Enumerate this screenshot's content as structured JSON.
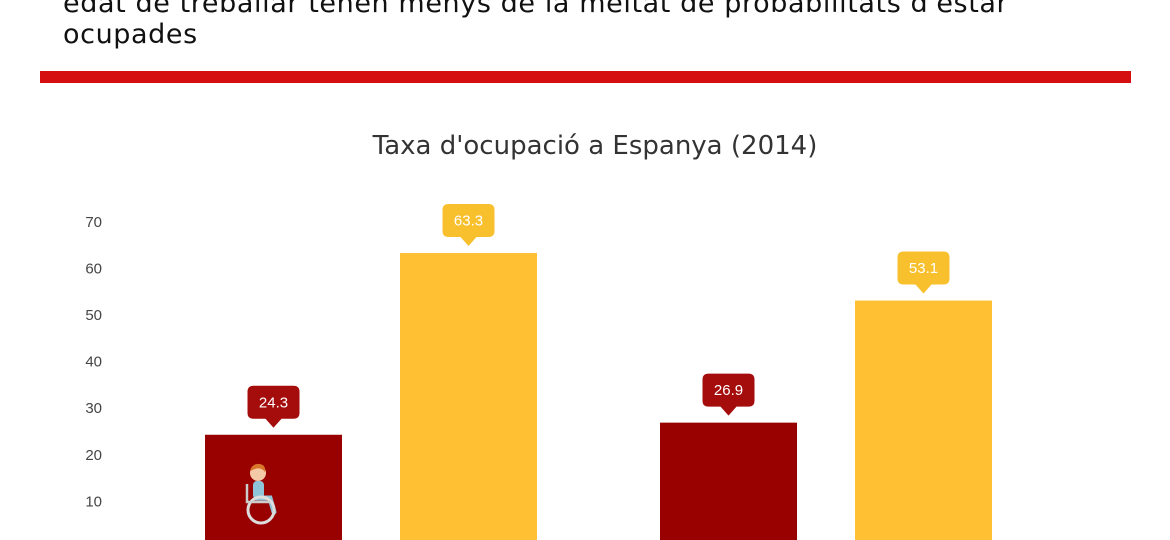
{
  "headline": {
    "line1": "edat de treballar tenen menys de la meitat de probabilitats d'estar",
    "line2": "ocupades"
  },
  "colors": {
    "rule": "#d50f0f",
    "series_a": "#990000",
    "series_b": "#ffc133",
    "label_a_bg": "#a50d0d",
    "label_b_bg": "#f9c02e"
  },
  "icon": "wheelchair-user-icon",
  "chart_data": {
    "type": "bar",
    "title": "Taxa d'ocupació a Espanya (2014)",
    "xlabel": "",
    "ylabel": "",
    "ylim": [
      0,
      70
    ],
    "yticks": [
      10,
      20,
      30,
      40,
      50,
      60,
      70
    ],
    "grid": false,
    "bars": [
      {
        "group": 1,
        "value": 24.3,
        "label": "24.3",
        "color": "#990000",
        "label_bg": "#a50d0d"
      },
      {
        "group": 1,
        "value": 63.3,
        "label": "63.3",
        "color": "#ffc133",
        "label_bg": "#f9c02e"
      },
      {
        "group": 2,
        "value": 26.9,
        "label": "26.9",
        "color": "#990000",
        "label_bg": "#a50d0d"
      },
      {
        "group": 2,
        "value": 53.1,
        "label": "53.1",
        "color": "#ffc133",
        "label_bg": "#f9c02e"
      }
    ]
  }
}
